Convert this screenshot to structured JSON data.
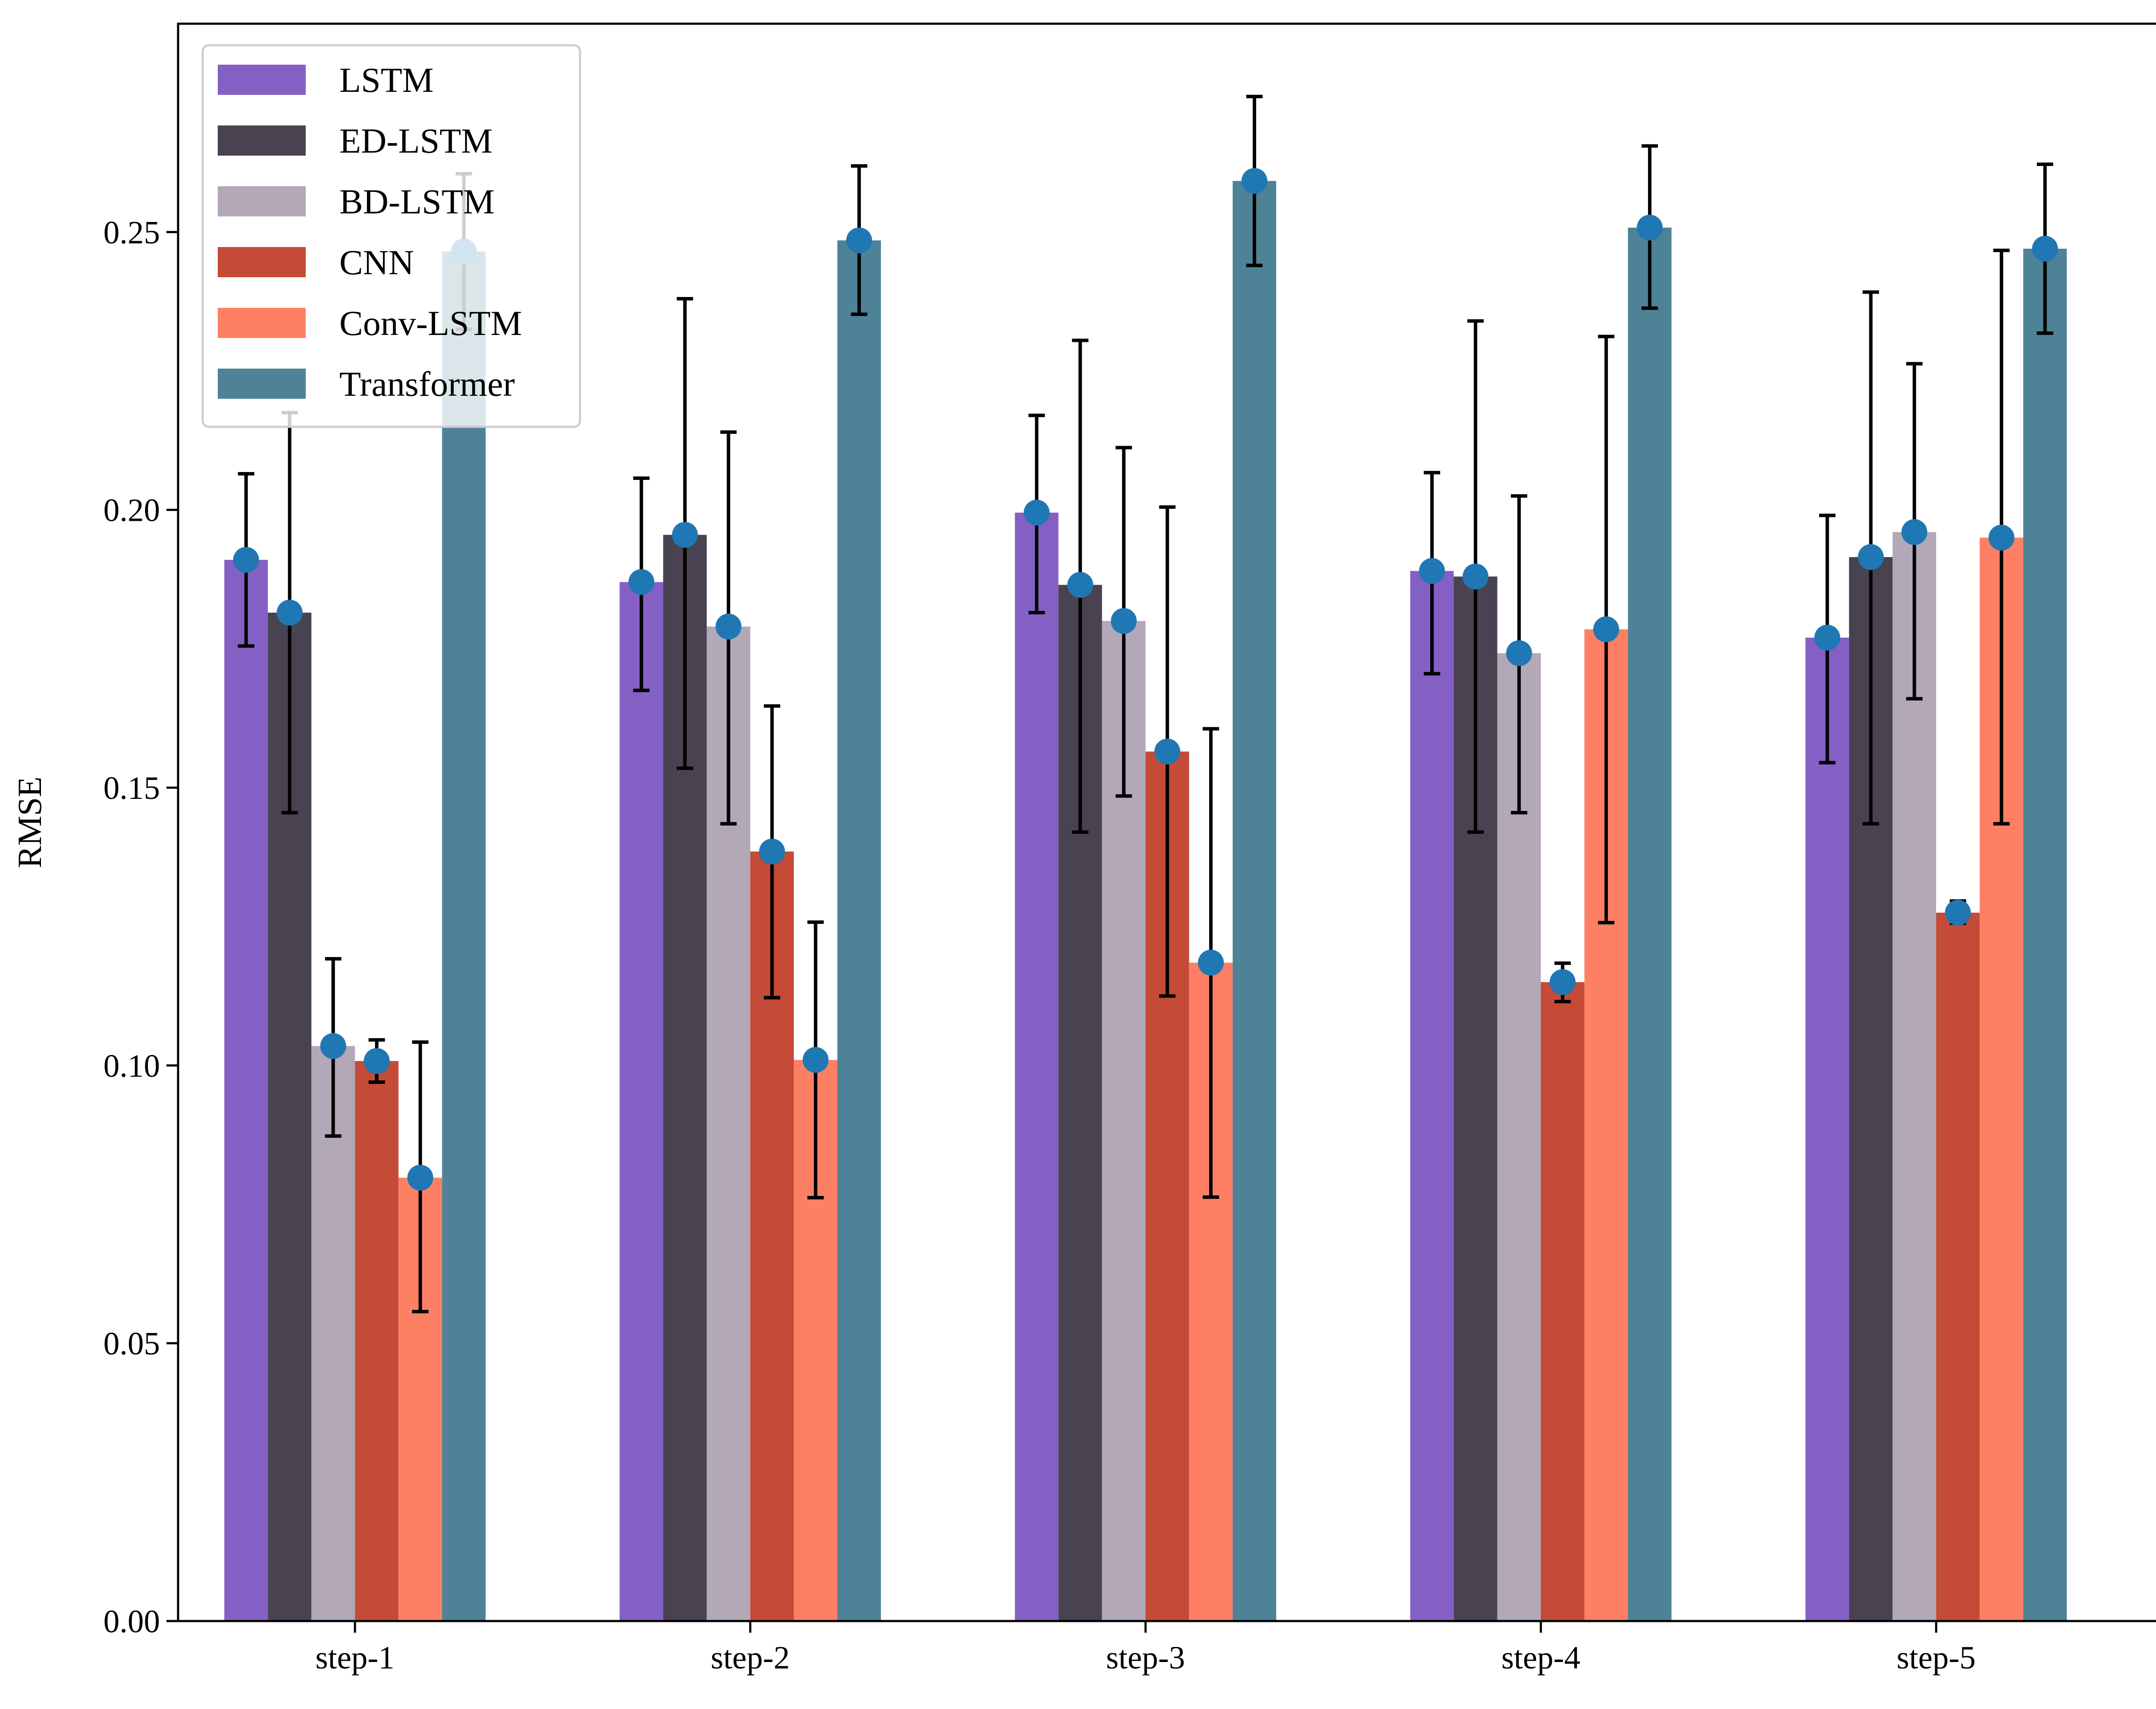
{
  "chart_data": {
    "type": "bar",
    "title": "",
    "xlabel": "",
    "ylabel": "RMSE",
    "ylim": [
      0,
      0.2875
    ],
    "yticks": [
      "0.00",
      "0.05",
      "0.10",
      "0.15",
      "0.20",
      "0.25"
    ],
    "yticks_values": [
      0,
      0.05,
      0.1,
      0.15,
      0.2,
      0.25
    ],
    "grid": false,
    "legend_position": "top-left",
    "categories": [
      "step-1",
      "step-2",
      "step-3",
      "step-4",
      "step-5"
    ],
    "marker_color": "#1f77b4",
    "error_color": "#000000",
    "series": [
      {
        "name": "LSTM",
        "color": "#8460c4",
        "values": [
          0.191,
          0.187,
          0.1995,
          0.189,
          0.177
        ],
        "err_low": [
          0.1755,
          0.1675,
          0.1815,
          0.1705,
          0.1545
        ],
        "err_high": [
          0.2065,
          0.2057,
          0.217,
          0.2067,
          0.199
        ]
      },
      {
        "name": "ED-LSTM",
        "color": "#494251",
        "values": [
          0.1815,
          0.1955,
          0.1865,
          0.188,
          0.1915
        ],
        "err_low": [
          0.1455,
          0.1535,
          0.142,
          0.142,
          0.1435
        ],
        "err_high": [
          0.2175,
          0.238,
          0.2305,
          0.234,
          0.2392
        ]
      },
      {
        "name": "BD-LSTM",
        "color": "#b2a8b8",
        "values": [
          0.1035,
          0.179,
          0.18,
          0.1742,
          0.196
        ],
        "err_low": [
          0.0873,
          0.1435,
          0.1485,
          0.1455,
          0.166
        ],
        "err_high": [
          0.1192,
          0.214,
          0.2112,
          0.2025,
          0.2263
        ]
      },
      {
        "name": "CNN",
        "color": "#c44b37",
        "values": [
          0.1008,
          0.1385,
          0.1565,
          0.115,
          0.1275
        ],
        "err_low": [
          0.097,
          0.1122,
          0.1125,
          0.1115,
          0.1256
        ],
        "err_high": [
          0.1046,
          0.1647,
          0.2005,
          0.1184,
          0.1296
        ]
      },
      {
        "name": "Conv-LSTM",
        "color": "#fe8064",
        "values": [
          0.0798,
          0.101,
          0.1185,
          0.1785,
          0.195
        ],
        "err_low": [
          0.0557,
          0.0762,
          0.0763,
          0.1257,
          0.1435
        ],
        "err_high": [
          0.1042,
          0.1258,
          0.1606,
          0.2312,
          0.2467
        ]
      },
      {
        "name": "Transformer",
        "color": "#4e8297",
        "values": [
          0.2465,
          0.2485,
          0.2592,
          0.2508,
          0.247
        ],
        "err_low": [
          0.2325,
          0.2352,
          0.244,
          0.2363,
          0.2318
        ],
        "err_high": [
          0.2605,
          0.2619,
          0.2744,
          0.2655,
          0.2622
        ]
      }
    ]
  }
}
